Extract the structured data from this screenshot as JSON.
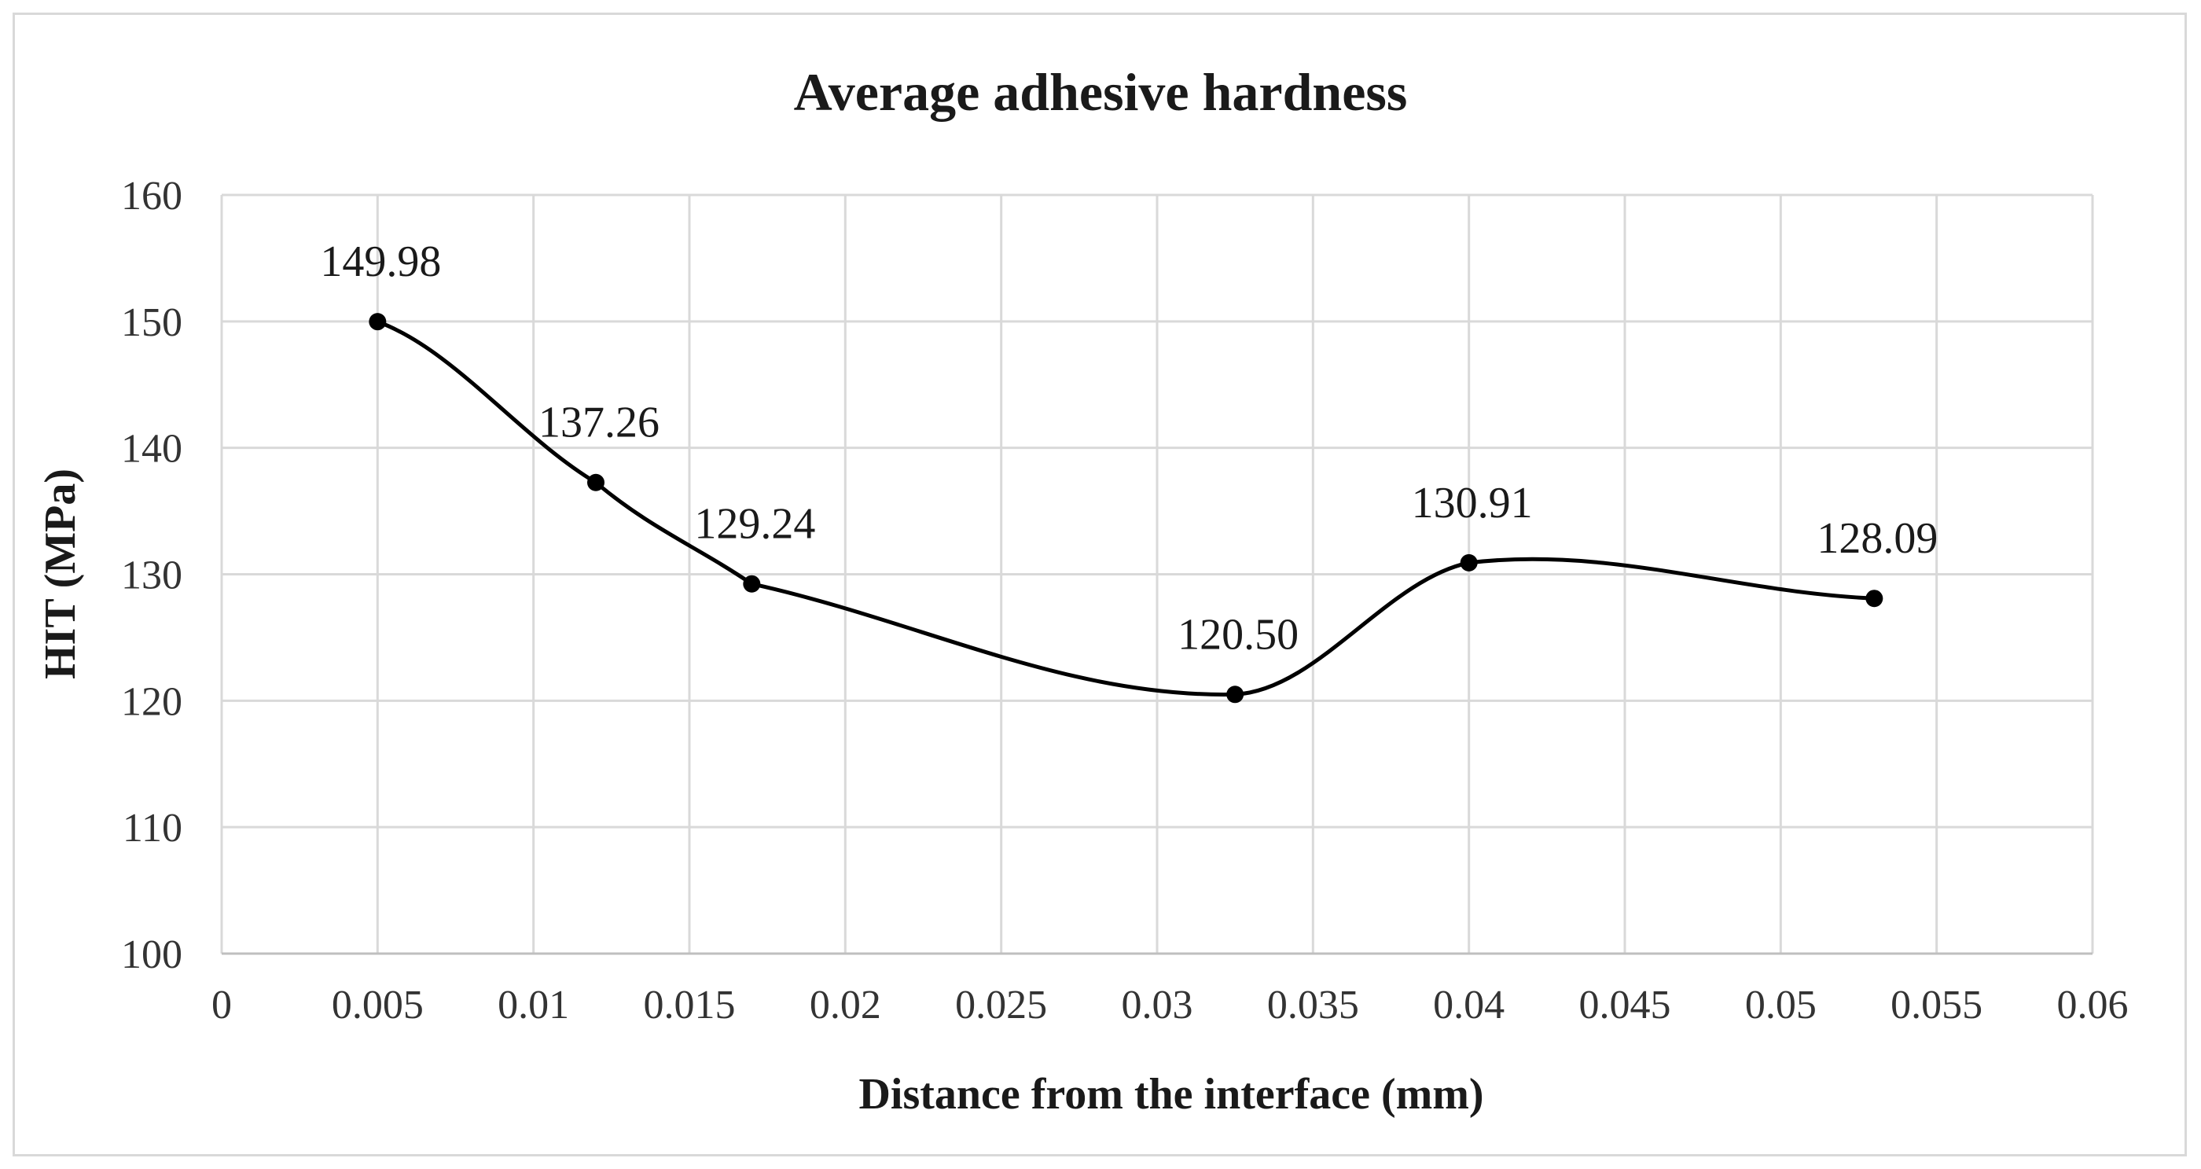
{
  "chart_data": {
    "type": "scatter",
    "title": "Average adhesive hardness",
    "xlabel": "Distance from the interface (mm)",
    "ylabel": "HIT (MPa)",
    "xlim": [
      0,
      0.06
    ],
    "ylim": [
      100,
      160
    ],
    "x_ticks": [
      "0",
      "0.005",
      "0.01",
      "0.015",
      "0.02",
      "0.025",
      "0.03",
      "0.035",
      "0.04",
      "0.045",
      "0.05",
      "0.055",
      "0.06"
    ],
    "y_ticks": [
      "100",
      "110",
      "120",
      "130",
      "140",
      "150",
      "160"
    ],
    "grid": true,
    "line_style": "smoothed",
    "marker": "circle",
    "series": [
      {
        "x": [
          0.005,
          0.012,
          0.017,
          0.0325,
          0.04,
          0.053
        ],
        "y": [
          149.98,
          137.26,
          129.24,
          120.5,
          130.91,
          128.09
        ],
        "labels": [
          "149.98",
          "137.26",
          "129.24",
          "120.50",
          "130.91",
          "128.09"
        ],
        "color": "#000000"
      }
    ]
  }
}
